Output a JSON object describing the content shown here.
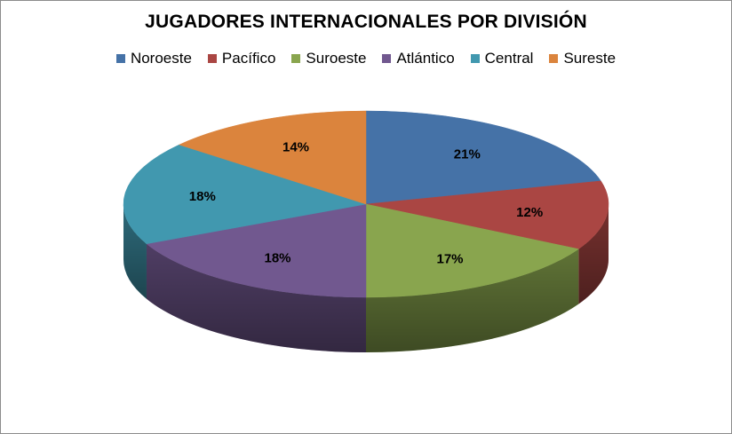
{
  "chart_data": {
    "type": "pie",
    "title": "JUGADORES INTERNACIONALES POR DIVISIÓN",
    "legend_position": "top",
    "series": [
      {
        "name": "Noroeste",
        "value": 21,
        "label": "21%",
        "color": "#4572A7"
      },
      {
        "name": "Pacífico",
        "value": 12,
        "label": "12%",
        "color": "#AA4643"
      },
      {
        "name": "Suroeste",
        "value": 17,
        "label": "17%",
        "color": "#89A54E"
      },
      {
        "name": "Atlántico",
        "value": 18,
        "label": "18%",
        "color": "#71588F"
      },
      {
        "name": "Central",
        "value": 18,
        "label": "18%",
        "color": "#4198AF"
      },
      {
        "name": "Sureste",
        "value": 14,
        "label": "14%",
        "color": "#DB843D"
      }
    ]
  }
}
